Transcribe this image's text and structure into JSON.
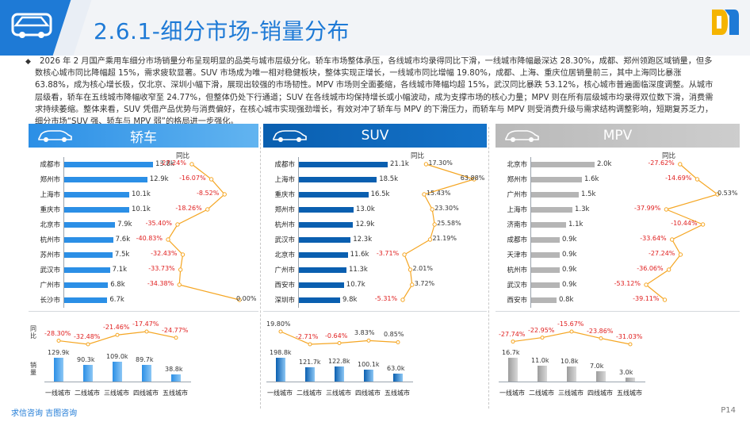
{
  "header": {
    "title": "2.6.1-细分市场-销量分布"
  },
  "intro": "2026 年 2 月国产乘用车细分市场销量分布呈现明显的品类与城市层级分化。轿车市场整体承压，各线城市均录得同比下滑，一线城市降幅最深达 28.30%，成都、郑州领跑区域销量，但多数核心城市同比降幅超 15%，需求疲软显著。SUV 市场成为唯一相对稳健板块，整体实现正增长，一线城市同比增幅 19.80%，成都、上海、重庆位居销量前三，其中上海同比暴涨 63.88%，成为核心增长极，仅北京、深圳小幅下滑，展现出较强的市场韧性。MPV 市场则全面萎缩，各线城市降幅均超 15%，武汉同比暴跌 53.12%，核心城市普遍面临深度调整。从城市层级看，轿车在五线城市降幅收窄至 24.77%，但整体仍处下行通道；SUV 在各线城市均保持增长或小幅波动，成为支撑市场的核心力量；MPV 则在所有层级城市均录得双位数下滑，消费需求持续萎缩。整体来看，SUV 凭借产品优势与消费偏好，在核心城市实现强劲增长，有效对冲了轿车与 MPV 的下滑压力，而轿车与 MPV 则受消费升级与需求结构调整影响，短期复苏乏力，细分市场“SUV 强、轿车与 MPV 弱”的格局进一步强化。",
  "panels": [
    {
      "key": "sedan",
      "title": "轿车",
      "yoy_title": "同比",
      "bar_color": "#2b8fe6",
      "cities": [
        "成都市",
        "郑州市",
        "上海市",
        "重庆市",
        "北京市",
        "杭州市",
        "苏州市",
        "武汉市",
        "广州市",
        "长沙市"
      ],
      "sales": [
        13.8,
        12.9,
        10.1,
        10.1,
        7.9,
        7.6,
        7.5,
        7.1,
        6.8,
        6.7
      ],
      "sales_labels": [
        "13.8k",
        "12.9k",
        "10.1k",
        "10.1k",
        "7.9k",
        "7.6k",
        "7.5k",
        "7.1k",
        "6.8k",
        "6.7k"
      ],
      "yoy": [
        -27.24,
        -16.07,
        -8.52,
        -18.26,
        -35.4,
        -40.83,
        -32.43,
        -33.73,
        -34.38,
        0.0
      ],
      "yoy_labels": [
        "-27.24%",
        "-16.07%",
        "-8.52%",
        "-18.26%",
        "-35.40%",
        "-40.83%",
        "-32.43%",
        "-33.73%",
        "-34.38%",
        "0.00%"
      ],
      "tiers": [
        "一线城市",
        "二线城市",
        "三线城市",
        "四线城市",
        "五线城市"
      ],
      "tier_yoy": [
        -28.3,
        -32.48,
        -21.46,
        -17.47,
        -24.77
      ],
      "tier_yoy_labels": [
        "-28.30%",
        "-32.48%",
        "-21.46%",
        "-17.47%",
        "-24.77%"
      ],
      "tier_sales": [
        129.9,
        90.3,
        109.0,
        89.7,
        38.8
      ],
      "tier_sales_labels": [
        "129.9k",
        "90.3k",
        "109.0k",
        "89.7k",
        "38.8k"
      ]
    },
    {
      "key": "suv",
      "title": "SUV",
      "yoy_title": "同比",
      "bar_color": "#0a5fb0",
      "cities": [
        "成都市",
        "上海市",
        "重庆市",
        "郑州市",
        "杭州市",
        "武汉市",
        "北京市",
        "广州市",
        "西安市",
        "深圳市"
      ],
      "sales": [
        21.1,
        18.5,
        16.5,
        13.0,
        12.9,
        12.3,
        11.6,
        11.3,
        10.7,
        9.8
      ],
      "sales_labels": [
        "21.1k",
        "18.5k",
        "16.5k",
        "13.0k",
        "12.9k",
        "12.3k",
        "11.6k",
        "11.3k",
        "10.7k",
        "9.8k"
      ],
      "yoy": [
        17.3,
        63.88,
        15.43,
        23.3,
        25.58,
        21.19,
        -3.71,
        2.01,
        3.72,
        -5.31
      ],
      "yoy_labels": [
        "17.30%",
        "63.88%",
        "15.43%",
        "23.30%",
        "25.58%",
        "21.19%",
        "-3.71%",
        "2.01%",
        "3.72%",
        "-5.31%"
      ],
      "tiers": [
        "一线城市",
        "二线城市",
        "三线城市",
        "四线城市",
        "五线城市"
      ],
      "tier_yoy": [
        19.8,
        -2.71,
        -0.64,
        3.83,
        0.85
      ],
      "tier_yoy_labels": [
        "19.80%",
        "-2.71%",
        "-0.64%",
        "3.83%",
        "0.85%"
      ],
      "tier_sales": [
        198.8,
        121.7,
        122.8,
        100.1,
        63.0
      ],
      "tier_sales_labels": [
        "198.8k",
        "121.7k",
        "122.8k",
        "100.1k",
        "63.0k"
      ]
    },
    {
      "key": "mpv",
      "title": "MPV",
      "yoy_title": "同比",
      "bar_color": "#b5b5b5",
      "cities": [
        "北京市",
        "郑州市",
        "广州市",
        "上海市",
        "济南市",
        "成都市",
        "天津市",
        "杭州市",
        "武汉市",
        "西安市"
      ],
      "sales": [
        2.0,
        1.6,
        1.5,
        1.3,
        1.1,
        0.9,
        0.9,
        0.9,
        0.9,
        0.8
      ],
      "sales_labels": [
        "2.0k",
        "1.6k",
        "1.5k",
        "1.3k",
        "1.1k",
        "0.9k",
        "0.9k",
        "0.9k",
        "0.9k",
        "0.8k"
      ],
      "yoy": [
        -27.62,
        -14.69,
        0.53,
        -37.99,
        -10.44,
        -33.64,
        -27.24,
        -36.06,
        -53.12,
        -39.11
      ],
      "yoy_labels": [
        "-27.62%",
        "-14.69%",
        "0.53%",
        "-37.99%",
        "-10.44%",
        "-33.64%",
        "-27.24%",
        "-36.06%",
        "-53.12%",
        "-39.11%"
      ],
      "tiers": [
        "一线城市",
        "二线城市",
        "三线城市",
        "四线城市",
        "五线城市"
      ],
      "tier_yoy": [
        -27.74,
        -22.95,
        -15.67,
        -23.86,
        -31.03
      ],
      "tier_yoy_labels": [
        "-27.74%",
        "-22.95%",
        "-15.67%",
        "-23.86%",
        "-31.03%"
      ],
      "tier_sales": [
        16.7,
        11.0,
        10.8,
        7.0,
        3.0
      ],
      "tier_sales_labels": [
        "16.7k",
        "11.0k",
        "10.8k",
        "7.0k",
        "3.0k"
      ]
    }
  ],
  "side_titles": {
    "yoy": "同比",
    "sales": "销量"
  },
  "footer": {
    "left": "求信咨询 吉图咨询",
    "right": "P14"
  },
  "colors": {
    "accent": "#1e7ad6",
    "line": "#f5a623",
    "negative": "#e02020"
  }
}
